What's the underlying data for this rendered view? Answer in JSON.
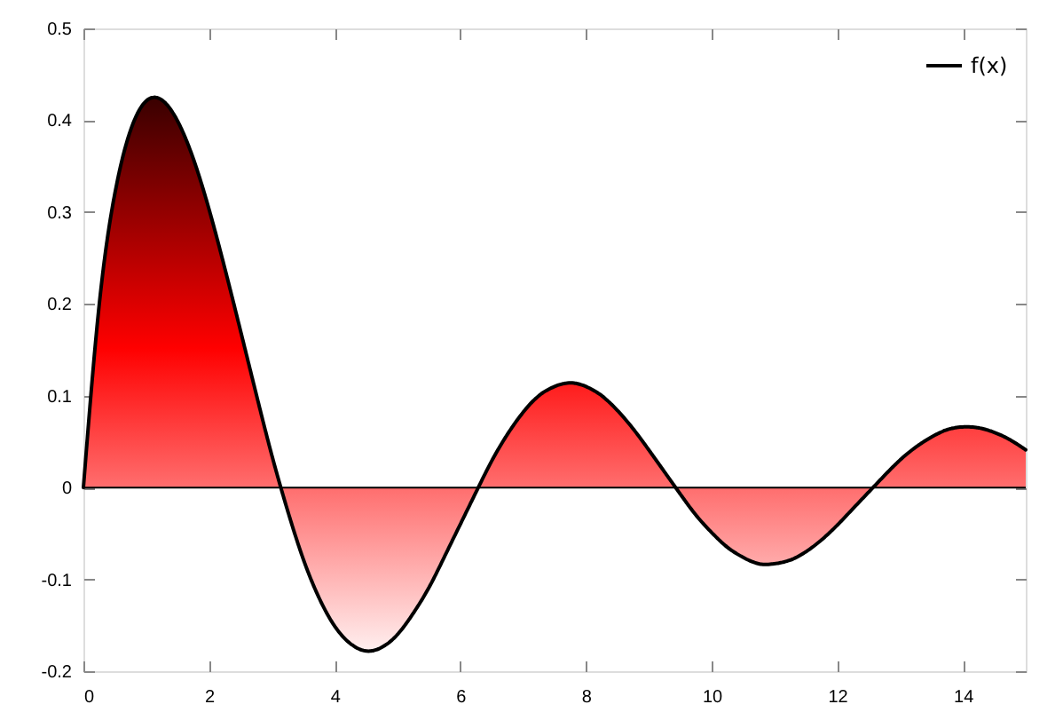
{
  "chart_data": {
    "type": "area",
    "x": [
      0,
      0.25,
      0.5,
      0.75,
      1,
      1.25,
      1.5,
      1.75,
      2,
      2.25,
      2.5,
      2.75,
      3,
      3.25,
      3.5,
      3.75,
      4,
      4.25,
      4.5,
      4.75,
      5,
      5.25,
      5.5,
      5.75,
      6,
      6.25,
      6.5,
      6.75,
      7,
      7.25,
      7.5,
      7.75,
      8,
      8.25,
      8.5,
      8.75,
      9,
      9.25,
      9.5,
      9.75,
      10,
      10.25,
      10.5,
      10.75,
      11,
      11.25,
      11.5,
      11.75,
      12,
      12.25,
      12.5,
      12.75,
      13,
      13.25,
      13.5,
      13.75,
      14,
      14.25,
      14.5,
      14.75,
      15
    ],
    "series": [
      {
        "name": "f(x)",
        "color": "#000000",
        "values": [
          0,
          0.198,
          0.32,
          0.389,
          0.421,
          0.422,
          0.399,
          0.358,
          0.303,
          0.239,
          0.171,
          0.102,
          0.035,
          -0.025,
          -0.078,
          -0.12,
          -0.151,
          -0.17,
          -0.178,
          -0.174,
          -0.16,
          -0.137,
          -0.109,
          -0.075,
          -0.04,
          -0.005,
          0.029,
          0.058,
          0.082,
          0.1,
          0.11,
          0.114,
          0.11,
          0.1,
          0.084,
          0.064,
          0.041,
          0.017,
          -0.007,
          -0.03,
          -0.049,
          -0.065,
          -0.076,
          -0.083,
          -0.083,
          -0.079,
          -0.07,
          -0.057,
          -0.041,
          -0.023,
          -0.005,
          0.013,
          0.03,
          0.044,
          0.055,
          0.063,
          0.066,
          0.065,
          0.06,
          0.052,
          0.041
        ]
      }
    ],
    "xlim": [
      0,
      15
    ],
    "ylim": [
      -0.2,
      0.5
    ],
    "xticks": [
      0,
      2,
      4,
      6,
      8,
      10,
      12,
      14
    ],
    "yticks": [
      -0.2,
      -0.1,
      0,
      0.1,
      0.2,
      0.3,
      0.4,
      0.5
    ],
    "ref_lines": [
      {
        "axis": "y",
        "value": 0,
        "color": "#000000"
      }
    ],
    "legend": "top right",
    "line_style": "solid"
  }
}
